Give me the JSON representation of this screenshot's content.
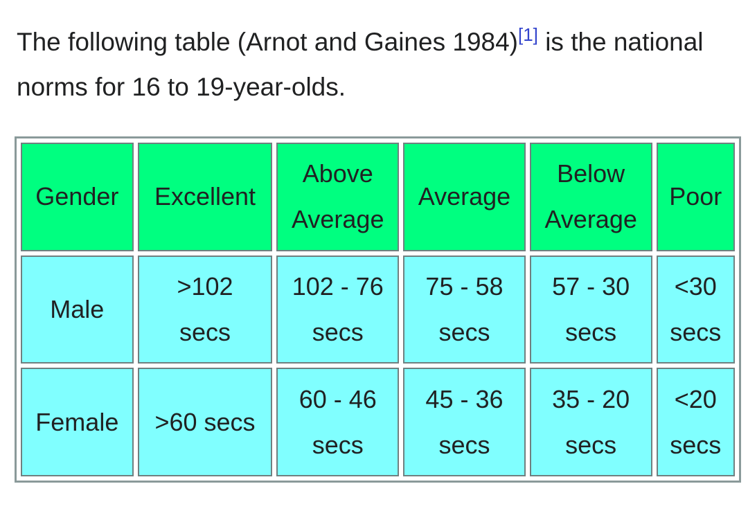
{
  "intro": {
    "text_before": "The following table (Arnot and Gaines 1984)",
    "citation": "[1]",
    "text_after": " is the national norms for 16 to 19-year-olds."
  },
  "table": {
    "headers": {
      "gender": "Gender",
      "excellent": "Excellent",
      "above_average": [
        "Above",
        "Average"
      ],
      "average": "Average",
      "below_average": [
        "Below",
        "Average"
      ],
      "poor": "Poor"
    },
    "rows": [
      {
        "gender": "Male",
        "excellent": [
          ">102",
          "secs"
        ],
        "above_average": [
          "102 - 76",
          "secs"
        ],
        "average": [
          "75 - 58",
          "secs"
        ],
        "below_average": [
          "57 - 30",
          "secs"
        ],
        "poor": [
          "<30",
          "secs"
        ]
      },
      {
        "gender": "Female",
        "excellent": ">60 secs",
        "above_average": [
          "60 - 46",
          "secs"
        ],
        "average": [
          "45 - 36",
          "secs"
        ],
        "below_average": [
          "35 - 20",
          "secs"
        ],
        "poor": [
          "<20",
          "secs"
        ]
      }
    ]
  },
  "colors": {
    "header_bg": "#00ff80",
    "cell_bg": "#80ffff",
    "link": "#3344cc"
  }
}
